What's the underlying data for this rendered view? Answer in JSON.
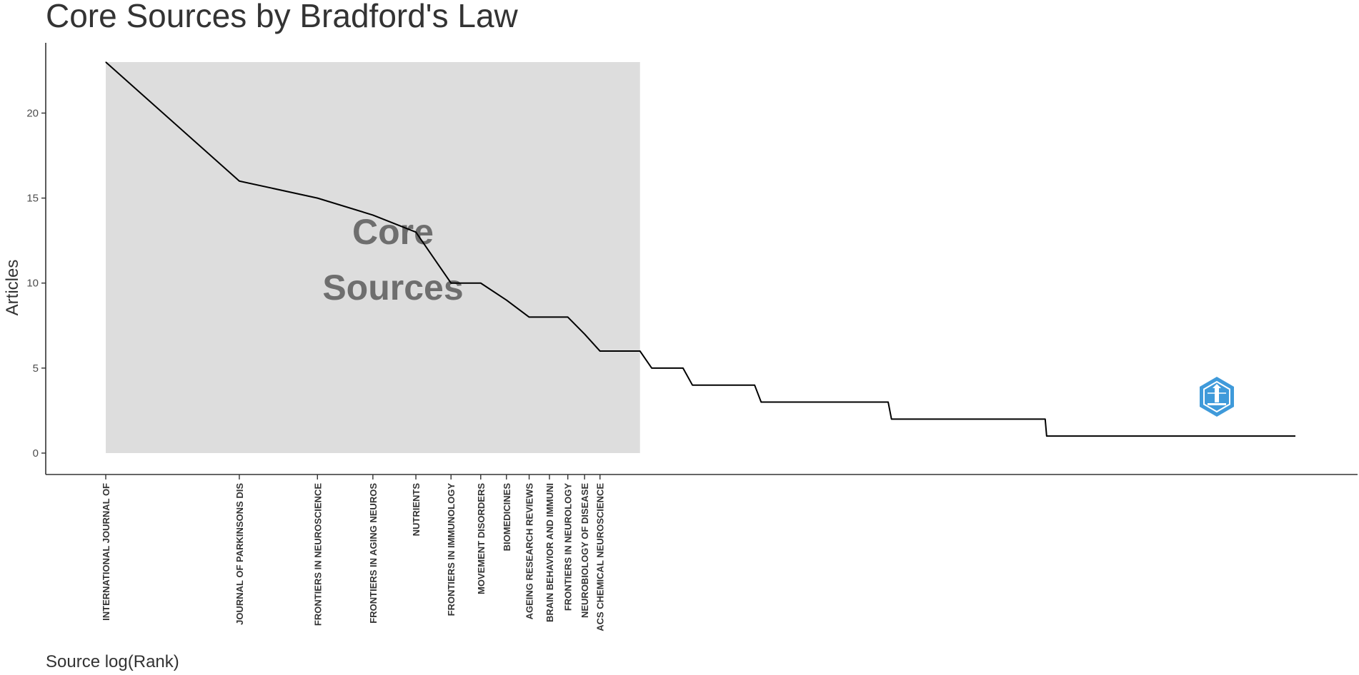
{
  "chart_data": {
    "type": "line",
    "title": "Core Sources by Bradford's Law",
    "xlabel": "Source log(Rank)",
    "ylabel": "Articles",
    "x_scale": "log",
    "ylim": [
      0,
      23
    ],
    "yticks": [
      0,
      5,
      10,
      15,
      20
    ],
    "grid": false,
    "core_zone": {
      "label_lines": [
        "Core",
        "Sources"
      ],
      "rank_range": [
        1,
        16
      ],
      "color": "#dddddd"
    },
    "labeled_sources": [
      {
        "rank": 1,
        "name": "INTERNATIONAL JOURNAL OF",
        "articles": 23
      },
      {
        "rank": 2,
        "name": "JOURNAL OF PARKINSONS DIS",
        "articles": 16
      },
      {
        "rank": 3,
        "name": "FRONTIERS IN NEUROSCIENCE",
        "articles": 15
      },
      {
        "rank": 4,
        "name": "FRONTIERS IN AGING NEUROS",
        "articles": 14
      },
      {
        "rank": 5,
        "name": "NUTRIENTS",
        "articles": 13
      },
      {
        "rank": 6,
        "name": "FRONTIERS IN IMMUNOLOGY",
        "articles": 10
      },
      {
        "rank": 7,
        "name": "MOVEMENT DISORDERS",
        "articles": 10
      },
      {
        "rank": 8,
        "name": "BIOMEDICINES",
        "articles": 9
      },
      {
        "rank": 9,
        "name": "AGEING RESEARCH REVIEWS",
        "articles": 8
      },
      {
        "rank": 10,
        "name": "BRAIN BEHAVIOR AND IMMUNI",
        "articles": 8
      },
      {
        "rank": 11,
        "name": "FRONTIERS IN NEUROLOGY",
        "articles": 8
      },
      {
        "rank": 12,
        "name": "NEUROBIOLOGY OF DISEASE",
        "articles": 7
      },
      {
        "rank": 13,
        "name": "ACS CHEMICAL NEUROSCIENCE",
        "articles": 6
      }
    ],
    "articles_by_rank": [
      23,
      16,
      15,
      14,
      13,
      10,
      10,
      9,
      8,
      8,
      8,
      7,
      6,
      6,
      6,
      6,
      5,
      5,
      5,
      5,
      4,
      4,
      4,
      4,
      4,
      4,
      4,
      4,
      4,
      3,
      3,
      3,
      3,
      3,
      3,
      3,
      3,
      3,
      3,
      3,
      3,
      3,
      3,
      3,
      3,
      3,
      3,
      3,
      3,
      3,
      3,
      3,
      3,
      3,
      3,
      3,
      3,
      3,
      2,
      2,
      2,
      2,
      2,
      2,
      2,
      2,
      2,
      2,
      2,
      2,
      2,
      2,
      2,
      2,
      2,
      2,
      2,
      2,
      2,
      2,
      2,
      2,
      2,
      2,
      2,
      2,
      2,
      2,
      2,
      2,
      2,
      2,
      2,
      2,
      2,
      2,
      2,
      2,
      2,
      2,
      2,
      2,
      2,
      2,
      2,
      2,
      2,
      2,
      2,
      2,
      2,
      2,
      2,
      2,
      2,
      2,
      2,
      2,
      2,
      2,
      2,
      2,
      2,
      2,
      2,
      2,
      2,
      2,
      2,
      2,
      2,
      1
    ],
    "max_rank": 480,
    "line_color": "#000000",
    "watermark_icon": "hexagon-lighthouse-logo-icon",
    "watermark_color": "#2a8fd6"
  }
}
